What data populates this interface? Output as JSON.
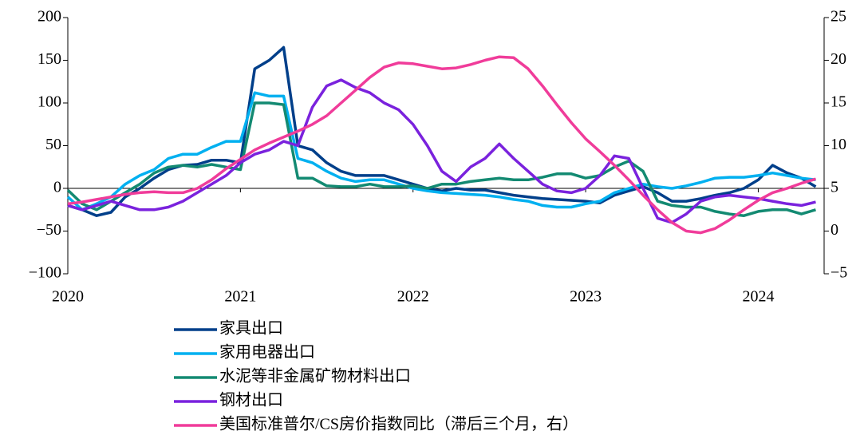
{
  "chart_data": {
    "type": "line",
    "x": [
      2020,
      2020.083,
      2020.167,
      2020.25,
      2020.333,
      2020.417,
      2020.5,
      2020.583,
      2020.667,
      2020.75,
      2020.833,
      2020.917,
      2021,
      2021.083,
      2021.167,
      2021.25,
      2021.333,
      2021.417,
      2021.5,
      2021.583,
      2021.667,
      2021.75,
      2021.833,
      2021.917,
      2022,
      2022.083,
      2022.167,
      2022.25,
      2022.333,
      2022.417,
      2022.5,
      2022.583,
      2022.667,
      2022.75,
      2022.833,
      2022.917,
      2023,
      2023.083,
      2023.167,
      2023.25,
      2023.333,
      2023.417,
      2023.5,
      2023.583,
      2023.667,
      2023.75,
      2023.833,
      2023.917,
      2024,
      2024.083,
      2024.167,
      2024.25,
      2024.333
    ],
    "xlim": [
      2020,
      2024.4
    ],
    "xticks": [
      2020,
      2021,
      2022,
      2023,
      2024
    ],
    "ylim": [
      -100,
      200
    ],
    "yticks": [
      {
        "value": -100,
        "label": "−100"
      },
      {
        "value": -50,
        "label": "−50"
      },
      0,
      50,
      100,
      150,
      200
    ],
    "y2lim": [
      -5,
      25
    ],
    "y2ticks": [
      {
        "value": -5,
        "label": "−5"
      },
      0,
      5,
      10,
      15,
      20,
      25
    ],
    "series": [
      {
        "name": "家具出口",
        "color": "#003f8a",
        "values": [
          -20,
          -25,
          -32,
          -28,
          -10,
          0,
          12,
          22,
          27,
          28,
          33,
          33,
          30,
          140,
          150,
          165,
          50,
          45,
          30,
          20,
          15,
          15,
          15,
          10,
          5,
          0,
          -3,
          0,
          -2,
          -2,
          -5,
          -8,
          -10,
          -12,
          -13,
          -14,
          -15,
          -17,
          -8,
          -3,
          2,
          -5,
          -15,
          -15,
          -12,
          -8,
          -5,
          0,
          10,
          27,
          18,
          12,
          2
        ]
      },
      {
        "name": "家用电器出口",
        "color": "#00b0f0",
        "values": [
          -10,
          -25,
          -18,
          -10,
          5,
          15,
          22,
          35,
          40,
          40,
          48,
          55,
          55,
          112,
          108,
          108,
          35,
          30,
          20,
          12,
          8,
          10,
          10,
          5,
          0,
          -3,
          -5,
          -6,
          -7,
          -8,
          -10,
          -13,
          -15,
          -20,
          -22,
          -22,
          -18,
          -15,
          -5,
          0,
          5,
          2,
          0,
          3,
          7,
          12,
          13,
          13,
          15,
          18,
          15,
          12,
          10
        ]
      },
      {
        "name": "水泥等非金属矿物材料出口",
        "color": "#138a72",
        "values": [
          -2,
          -18,
          -25,
          -15,
          -5,
          5,
          18,
          25,
          27,
          25,
          28,
          25,
          22,
          100,
          100,
          98,
          12,
          12,
          3,
          2,
          2,
          5,
          2,
          2,
          3,
          0,
          5,
          5,
          8,
          10,
          12,
          10,
          10,
          13,
          17,
          17,
          12,
          15,
          25,
          32,
          20,
          -15,
          -20,
          -22,
          -22,
          -27,
          -30,
          -32,
          -27,
          -25,
          -25,
          -30,
          -25
        ]
      },
      {
        "name": "钢材出口",
        "color": "#7a22dd",
        "values": [
          -20,
          -25,
          -20,
          -15,
          -20,
          -25,
          -25,
          -22,
          -15,
          -5,
          5,
          15,
          30,
          40,
          45,
          55,
          50,
          95,
          120,
          127,
          118,
          112,
          100,
          92,
          75,
          50,
          20,
          8,
          25,
          35,
          52,
          35,
          20,
          5,
          -3,
          -5,
          0,
          15,
          38,
          35,
          0,
          -35,
          -40,
          -30,
          -15,
          -10,
          -8,
          -10,
          -12,
          -15,
          -18,
          -20,
          -16
        ]
      },
      {
        "name": "美国标准普尔/CS房价指数同比（滞后三个月，右）",
        "color": "#f03c9a",
        "axis": "y2",
        "values": [
          3.2,
          3.4,
          3.7,
          4.0,
          4.3,
          4.5,
          4.6,
          4.5,
          4.5,
          5.0,
          6.0,
          7.3,
          8.4,
          9.5,
          10.3,
          11.0,
          11.7,
          12.5,
          13.5,
          15.0,
          16.5,
          18.0,
          19.2,
          19.7,
          19.6,
          19.3,
          19.0,
          19.1,
          19.5,
          20.0,
          20.4,
          20.3,
          19.0,
          17.0,
          14.8,
          12.7,
          10.8,
          9.3,
          7.7,
          6.0,
          4.2,
          2.5,
          1.0,
          0.0,
          -0.2,
          0.3,
          1.3,
          2.5,
          3.6,
          4.5,
          5.0,
          5.6,
          6.1
        ]
      }
    ]
  }
}
